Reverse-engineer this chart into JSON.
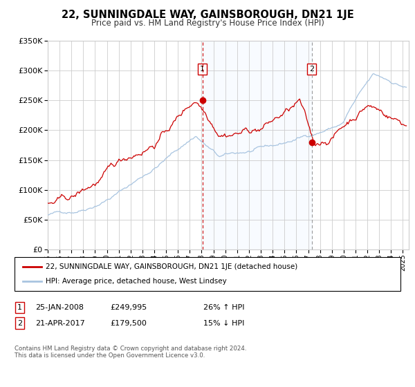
{
  "title": "22, SUNNINGDALE WAY, GAINSBOROUGH, DN21 1JE",
  "subtitle": "Price paid vs. HM Land Registry's House Price Index (HPI)",
  "legend_line1": "22, SUNNINGDALE WAY, GAINSBOROUGH, DN21 1JE (detached house)",
  "legend_line2": "HPI: Average price, detached house, West Lindsey",
  "note1_date": "25-JAN-2008",
  "note1_price": "£249,995",
  "note1_hpi": "26% ↑ HPI",
  "note2_date": "21-APR-2017",
  "note2_price": "£179,500",
  "note2_hpi": "15% ↓ HPI",
  "footer": "Contains HM Land Registry data © Crown copyright and database right 2024.\nThis data is licensed under the Open Government Licence v3.0.",
  "hpi_color": "#a8c4e0",
  "price_color": "#cc0000",
  "sale1_date_num": 2008.07,
  "sale2_date_num": 2017.3,
  "sale1_price": 249995,
  "sale2_price": 179500,
  "ylim": [
    0,
    350000
  ],
  "xlim_start": 1995.0,
  "xlim_end": 2025.5,
  "background_color": "#ffffff",
  "grid_color": "#cccccc",
  "shade_color": "#ddeeff"
}
